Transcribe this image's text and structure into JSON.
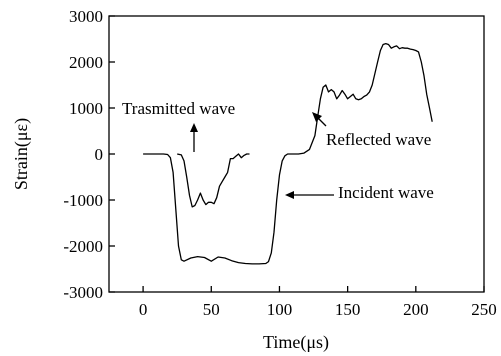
{
  "chart_data": {
    "type": "line",
    "xlabel": "Time(μs)",
    "ylabel": "Strain(με)",
    "xlim": [
      -25,
      250
    ],
    "ylim": [
      -3000,
      3000
    ],
    "x_ticks": [
      0,
      50,
      100,
      150,
      200,
      250
    ],
    "y_ticks": [
      -3000,
      -2000,
      -1000,
      0,
      1000,
      2000,
      3000
    ],
    "grid": false,
    "legend": "none",
    "line_color": "#000000",
    "series": [
      {
        "x": [
          0,
          10,
          15,
          18,
          20,
          22,
          24,
          26,
          28,
          30,
          35,
          40,
          45,
          50,
          55,
          60,
          65,
          70,
          75,
          80,
          85,
          90,
          92,
          94,
          96,
          98,
          100,
          102,
          104,
          106,
          110,
          114,
          118,
          122,
          126,
          128,
          130,
          132,
          134,
          136,
          138,
          140,
          142,
          144,
          146,
          148,
          150,
          152,
          154,
          156,
          158,
          160,
          162,
          164,
          166,
          168,
          170,
          172,
          174,
          176,
          178,
          180,
          182,
          184,
          186,
          188,
          190,
          192,
          194,
          196,
          198,
          200,
          202,
          204,
          206,
          208,
          210,
          212
        ],
        "y": [
          0,
          0,
          0,
          -10,
          -80,
          -400,
          -1200,
          -2000,
          -2300,
          -2330,
          -2260,
          -2230,
          -2250,
          -2330,
          -2240,
          -2260,
          -2320,
          -2360,
          -2380,
          -2390,
          -2390,
          -2380,
          -2340,
          -2150,
          -1700,
          -1000,
          -450,
          -150,
          -40,
          0,
          0,
          0,
          20,
          100,
          400,
          800,
          1200,
          1450,
          1500,
          1350,
          1400,
          1350,
          1200,
          1280,
          1380,
          1300,
          1200,
          1250,
          1300,
          1200,
          1180,
          1200,
          1250,
          1280,
          1350,
          1500,
          1750,
          2000,
          2250,
          2380,
          2400,
          2380,
          2300,
          2330,
          2350,
          2290,
          2310,
          2300,
          2300,
          2280,
          2270,
          2250,
          2220,
          2000,
          1700,
          1300,
          1000,
          700
        ]
      },
      {
        "x": [
          25,
          28,
          30,
          32,
          34,
          36,
          38,
          40,
          42,
          44,
          46,
          48,
          50,
          52,
          54,
          56,
          58,
          60,
          62,
          64,
          66,
          68,
          70,
          72,
          74,
          76,
          78
        ],
        "y": [
          0,
          -20,
          -150,
          -500,
          -900,
          -1150,
          -1120,
          -1000,
          -850,
          -1000,
          -1100,
          -1050,
          -1050,
          -1080,
          -950,
          -700,
          -600,
          -500,
          -400,
          -100,
          -100,
          -50,
          0,
          -80,
          -30,
          0,
          0
        ]
      }
    ],
    "annotations": [
      "Trasmitted wave",
      "Reflected wave",
      "Incident wave"
    ]
  }
}
